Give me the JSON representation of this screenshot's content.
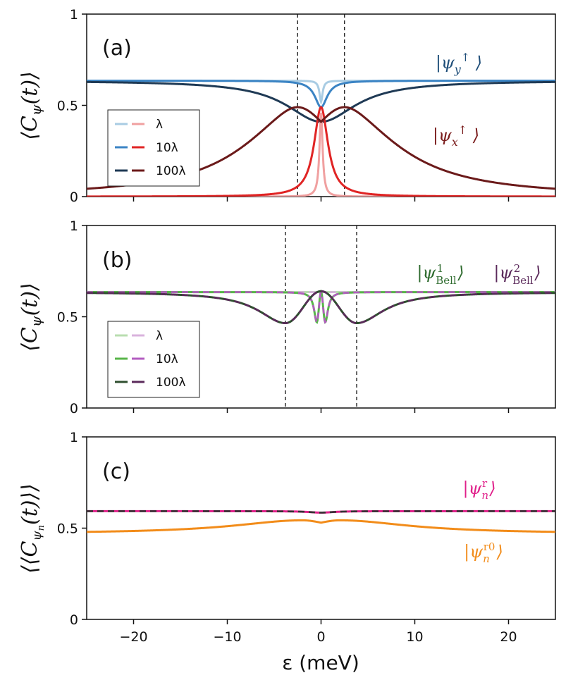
{
  "figure": {
    "xlabel": "ε (meV)",
    "xlim": [
      -25,
      25
    ],
    "x_ticks": [
      -20,
      -10,
      0,
      10,
      20
    ],
    "x_tick_labels": [
      "−20",
      "−10",
      "0",
      "10",
      "20"
    ],
    "y_ticks": [
      0,
      0.5,
      1
    ],
    "y_tick_labels": [
      "0",
      "0.5",
      "1"
    ]
  },
  "chart_data": [
    {
      "type": "line",
      "panel": "(a)",
      "ylabel": "⟨C_ψ(t)⟩",
      "ylim": [
        0,
        1
      ],
      "vlines": [
        -2.5,
        2.5
      ],
      "annotations": [
        {
          "text": "|ψy↑⟩",
          "color": "#1f4e79"
        },
        {
          "text": "|ψx↑⟩",
          "color": "#7a1c1c"
        }
      ],
      "legend": {
        "labels": [
          "λ",
          "10λ",
          "100λ"
        ],
        "position": "lower-left"
      },
      "series": [
        {
          "name": "λ",
          "state": "ψy↑",
          "color": "#a9cce3",
          "dashed": false,
          "kind": "dip",
          "base": 0.635,
          "depth": 0.115,
          "width": 0.2
        },
        {
          "name": "10λ",
          "state": "ψy↑",
          "color": "#3b84c4",
          "dashed": false,
          "kind": "dip",
          "base": 0.635,
          "depth": 0.145,
          "width": 0.8
        },
        {
          "name": "100λ",
          "state": "ψy↑",
          "color": "#1f3a55",
          "dashed": false,
          "kind": "dip",
          "base": 0.635,
          "depth": 0.225,
          "width": 4.5
        },
        {
          "name": "λ",
          "state": "ψx↑",
          "color": "#f0a0a0",
          "dashed": false,
          "kind": "peak",
          "base": 0.0,
          "height": 0.46,
          "width": 0.2
        },
        {
          "name": "10λ",
          "state": "ψx↑",
          "color": "#e02424",
          "dashed": false,
          "kind": "peak",
          "base": 0.0,
          "height": 0.49,
          "width": 0.9
        },
        {
          "name": "100λ",
          "state": "ψx↑",
          "color": "#6b1a1a",
          "dashed": false,
          "kind": "double",
          "base": 0.0,
          "peak": 0.49,
          "center": 0.41,
          "peak_x": 2.5
        }
      ]
    },
    {
      "type": "line",
      "panel": "(b)",
      "ylabel": "⟨C_ψ(t)⟩",
      "ylim": [
        0,
        1
      ],
      "vlines": [
        -3.8,
        3.8
      ],
      "annotations": [
        {
          "text": "|ψ¹Bell⟩",
          "color": "#2e6b2e"
        },
        {
          "text": "|ψ²Bell⟩",
          "color": "#5b2a5b"
        }
      ],
      "legend": {
        "labels": [
          "λ",
          "10λ",
          "100λ"
        ],
        "position": "lower-left"
      },
      "series": [
        {
          "name": "λ",
          "state": "Bell1",
          "color": "#b9deb0",
          "dashed": false,
          "kind": "bell",
          "base": 0.635,
          "dip_x": 0.4,
          "dip_depth": 0.0,
          "center": 0.635,
          "width": 0.2
        },
        {
          "name": "λ",
          "state": "Bell2",
          "color": "#d9b3dd",
          "dashed": true,
          "kind": "bell",
          "base": 0.635,
          "dip_x": 0.4,
          "dip_depth": 0.0,
          "center": 0.635,
          "width": 0.2
        },
        {
          "name": "10λ",
          "state": "Bell1",
          "color": "#58b54a",
          "dashed": false,
          "kind": "bell",
          "base": 0.635,
          "dip_x": 0.45,
          "dip_depth": 0.47,
          "center": 0.635,
          "width": 0.35
        },
        {
          "name": "10λ",
          "state": "Bell2",
          "color": "#b35cc0",
          "dashed": true,
          "kind": "bell",
          "base": 0.635,
          "dip_x": 0.45,
          "dip_depth": 0.47,
          "center": 0.635,
          "width": 0.35
        },
        {
          "name": "100λ",
          "state": "Bell1",
          "color": "#2f4f2f",
          "dashed": false,
          "kind": "bell",
          "base": 0.635,
          "dip_x": 3.8,
          "dip_depth": 0.465,
          "center": 0.64,
          "width": 3.5
        },
        {
          "name": "100λ",
          "state": "Bell2",
          "color": "#5b2a5b",
          "dashed": true,
          "kind": "bell",
          "base": 0.635,
          "dip_x": 3.8,
          "dip_depth": 0.465,
          "center": 0.64,
          "width": 3.5
        }
      ]
    },
    {
      "type": "line",
      "panel": "(c)",
      "ylabel": "⟨⟨C_ψn(t)⟩⟩",
      "ylim": [
        0,
        1
      ],
      "vlines": [],
      "annotations": [
        {
          "text": "|ψnʳ⟩",
          "color": "#e0208a"
        },
        {
          "text": "|ψnʳ⁰⟩",
          "color": "#f28c1a"
        }
      ],
      "series": [
        {
          "name": "ψn r",
          "color": "#e0208a",
          "dashed": false,
          "kind": "flatdip",
          "base": 0.593,
          "depth": 0.008
        },
        {
          "name": "ψn r (ref)",
          "color": "#333333",
          "dashed": true,
          "kind": "flatdip",
          "base": 0.593,
          "depth": 0.008
        },
        {
          "name": "ψn r0",
          "color": "#f28c1a",
          "dashed": false,
          "kind": "orange",
          "base": 0.47,
          "peak": 0.543,
          "center": 0.53,
          "peak_x": 2.0
        }
      ]
    }
  ]
}
